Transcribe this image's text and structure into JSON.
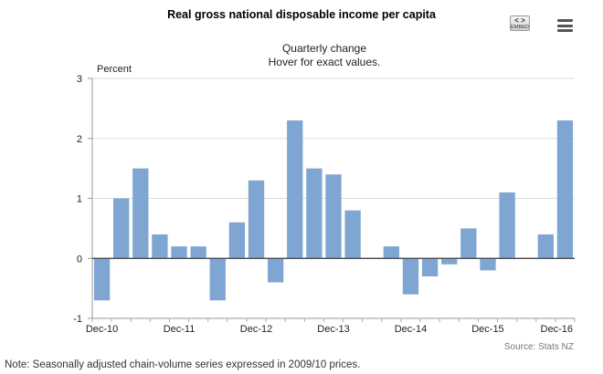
{
  "header": {
    "title": "Real gross national disposable income per capita",
    "subtitle_line1": "Quarterly change",
    "subtitle_line2": "Hover for exact values."
  },
  "toolbar": {
    "embed_arrows": "< >",
    "embed_label": "EMBED",
    "embed_icon": "embed-icon",
    "menu_icon": "hamburger-menu-icon"
  },
  "chart_data": {
    "type": "bar",
    "yunit_label": "Percent",
    "ylim": [
      -1,
      3
    ],
    "yticks": [
      -1,
      0,
      1,
      2,
      3
    ],
    "grid": true,
    "legend": "none",
    "bar_color": "#7fa6d3",
    "categories": [
      "Dec-10",
      "Mar-11",
      "Jun-11",
      "Sep-11",
      "Dec-11",
      "Mar-12",
      "Jun-12",
      "Sep-12",
      "Dec-12",
      "Mar-13",
      "Jun-13",
      "Sep-13",
      "Dec-13",
      "Mar-14",
      "Jun-14",
      "Sep-14",
      "Dec-14",
      "Mar-15",
      "Jun-15",
      "Sep-15",
      "Dec-15",
      "Mar-16",
      "Jun-16",
      "Sep-16",
      "Dec-16"
    ],
    "values": [
      -0.7,
      1.0,
      1.5,
      0.4,
      0.2,
      0.2,
      -0.7,
      0.6,
      1.3,
      -0.4,
      2.3,
      1.5,
      1.4,
      0.8,
      0.0,
      0.2,
      -0.6,
      -0.3,
      -0.1,
      0.5,
      -0.2,
      1.1,
      0.0,
      0.4,
      2.3
    ],
    "xtick_labels": [
      "Dec-10",
      "Dec-11",
      "Dec-12",
      "Dec-13",
      "Dec-14",
      "Dec-15",
      "Dec-16"
    ],
    "xtick_indices": [
      0,
      4,
      8,
      12,
      16,
      20,
      24
    ],
    "source": "Source: Stats NZ"
  },
  "footer": {
    "note": "Note: Seasonally adjusted chain-volume series expressed in 2009/10 prices."
  }
}
